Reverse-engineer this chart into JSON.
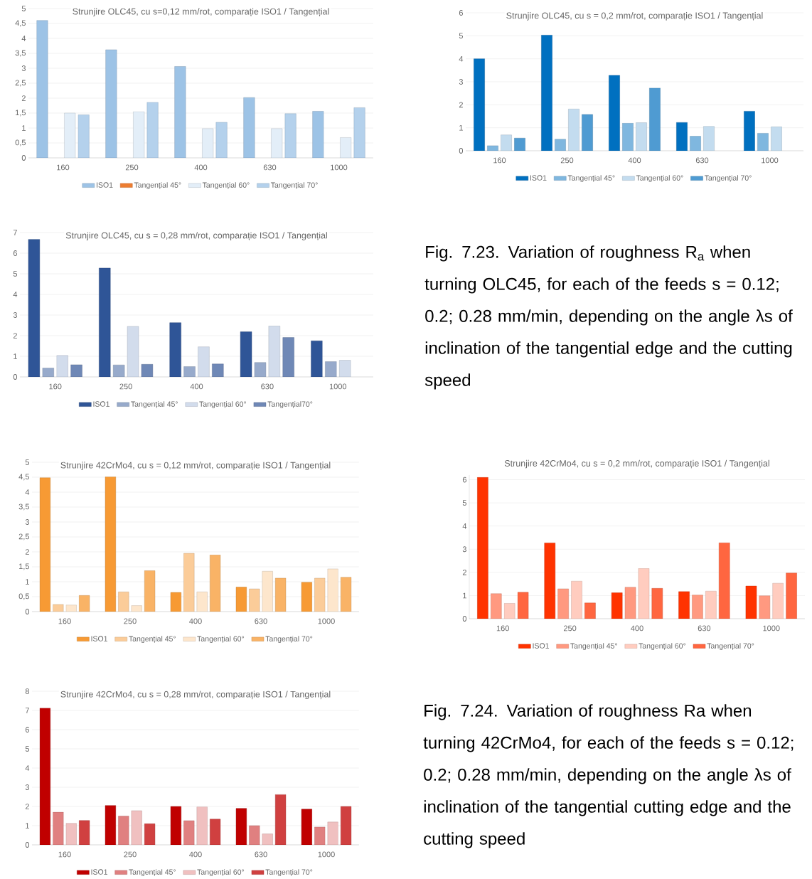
{
  "chart_data": [
    {
      "type": "bar",
      "title": "Strunjire OLC45, cu s=0,12 mm/rot, comparație ISO1 / Tangențial",
      "categories": [
        "160",
        "250",
        "400",
        "630",
        "1000"
      ],
      "ylim": [
        0,
        5
      ],
      "yticks": [
        0,
        {
          "value": 0.5,
          "label": "0,5"
        },
        1,
        {
          "value": 1.5,
          "label": "1,5"
        },
        2,
        {
          "value": 2.5,
          "label": "2,5"
        },
        3,
        {
          "value": 3.5,
          "label": "3,5"
        },
        4,
        {
          "value": 4.5,
          "label": "4,5"
        },
        5
      ],
      "grid": "y",
      "legend": "bottom",
      "series": [
        {
          "name": "ISO1",
          "color": "#9dc3e6",
          "values": [
            4.6,
            3.62,
            3.06,
            2.02,
            1.56
          ]
        },
        {
          "name": "Tangențial 45°",
          "color": "#ed7d31",
          "values": [
            null,
            null,
            null,
            null,
            null
          ]
        },
        {
          "name": "Tangențial 60°",
          "color": "#e3eef8",
          "values": [
            1.5,
            1.55,
            0.98,
            0.98,
            0.68
          ]
        },
        {
          "name": "Tangențial 70°",
          "color": "#b4d1ec",
          "values": [
            1.44,
            1.86,
            1.19,
            1.48,
            1.68
          ]
        }
      ]
    },
    {
      "type": "bar",
      "title": "Strunjire OLC45, cu s = 0,2 mm/rot, comparație ISO1 / Tangențial",
      "categories": [
        "160",
        "250",
        "400",
        "630",
        "1000"
      ],
      "ylim": [
        0,
        6
      ],
      "yticks": [
        0,
        1,
        2,
        3,
        4,
        5,
        6
      ],
      "grid": "y",
      "legend": "bottom",
      "series": [
        {
          "name": "ISO1",
          "color": "#0070c0",
          "values": [
            4.0,
            5.03,
            3.28,
            1.23,
            1.72
          ]
        },
        {
          "name": "Tangențial 45°",
          "color": "#7fb7df",
          "values": [
            0.22,
            0.5,
            1.2,
            0.63,
            0.76
          ]
        },
        {
          "name": "Tangențial 60°",
          "color": "#c3dcef",
          "values": [
            0.69,
            1.82,
            1.22,
            1.06,
            1.04
          ]
        },
        {
          "name": "Tangențial 70°",
          "color": "#4f9bd2",
          "values": [
            0.55,
            1.58,
            2.73,
            null,
            null
          ]
        }
      ]
    },
    {
      "type": "bar",
      "title": "Strunjire OLC45, cu s = 0,28 mm/rot, comparație ISO1 / Tangențial",
      "categories": [
        "160",
        "250",
        "400",
        "630",
        "1000"
      ],
      "ylim": [
        0,
        7
      ],
      "yticks": [
        0,
        1,
        2,
        3,
        4,
        5,
        6,
        7
      ],
      "grid": "y",
      "legend": "bottom",
      "series": [
        {
          "name": "ISO1",
          "color": "#2f5597",
          "values": [
            6.67,
            5.28,
            2.63,
            2.19,
            1.75
          ]
        },
        {
          "name": "Tangențial 45°",
          "color": "#97aacb",
          "values": [
            0.43,
            0.58,
            0.5,
            0.7,
            0.74
          ]
        },
        {
          "name": "Tangențial 60°",
          "color": "#d2dcec",
          "values": [
            1.04,
            2.45,
            1.46,
            2.47,
            0.81
          ]
        },
        {
          "name": "Tangențial70°",
          "color": "#6f88b6",
          "values": [
            0.59,
            0.61,
            0.63,
            1.91,
            null
          ]
        }
      ]
    },
    {
      "type": "other",
      "annotations": [
        "Fig. 7.23. Variation of roughness R$_{a}$ when turning OLC45, for each of the feeds s = 0.12; 0.2; 0.28 mm/min, depending on the angle λs of inclination of the tangential edge and the cutting speed"
      ]
    },
    {
      "type": "bar",
      "title": "Strunjire 42CrMo4, cu s = 0,12 mm/rot, comparație ISO1 / Tangențial",
      "categories": [
        "160",
        "250",
        "400",
        "630",
        "1000"
      ],
      "ylim": [
        0,
        5
      ],
      "yticks": [
        0,
        {
          "value": 0.5,
          "label": "0,5"
        },
        1,
        {
          "value": 1.5,
          "label": "1,5"
        },
        2,
        {
          "value": 2.5,
          "label": "2,5"
        },
        3,
        {
          "value": 3.5,
          "label": "3,5"
        },
        4,
        {
          "value": 4.5,
          "label": "4,5"
        },
        5
      ],
      "grid": "y",
      "legend": "bottom",
      "series": [
        {
          "name": "ISO1",
          "color": "#f79a34",
          "values": [
            4.48,
            4.51,
            0.64,
            0.82,
            0.98
          ]
        },
        {
          "name": "Tangențial 45°",
          "color": "#fbcc99",
          "values": [
            0.24,
            0.66,
            1.95,
            0.76,
            1.12
          ]
        },
        {
          "name": "Tangențial 60°",
          "color": "#fde6cc",
          "values": [
            0.22,
            0.2,
            0.66,
            1.35,
            1.43
          ]
        },
        {
          "name": "Tangențial 70°",
          "color": "#f9b366",
          "values": [
            0.54,
            1.37,
            1.9,
            1.12,
            1.15
          ]
        }
      ]
    },
    {
      "type": "bar",
      "title": "Strunjire 42CrMo4, cu s = 0,2 mm/rot, comparație ISO1 / Tangențial",
      "categories": [
        "160",
        "250",
        "400",
        "630",
        "1000"
      ],
      "ylim": [
        0,
        6.2
      ],
      "yticks": [
        0,
        1,
        2,
        3,
        4,
        5,
        6
      ],
      "grid": "y",
      "legend": "bottom",
      "series": [
        {
          "name": "ISO1",
          "color": "#ff3300",
          "values": [
            6.1,
            3.27,
            1.12,
            1.17,
            1.41
          ]
        },
        {
          "name": "Tangențial 45°",
          "color": "#ff9980",
          "values": [
            1.08,
            1.29,
            1.36,
            1.02,
            0.99
          ]
        },
        {
          "name": "Tangențial 60°",
          "color": "#ffccbf",
          "values": [
            0.66,
            1.62,
            2.17,
            1.19,
            1.53
          ]
        },
        {
          "name": "Tangențial 70°",
          "color": "#ff6640",
          "values": [
            1.14,
            0.68,
            1.31,
            3.28,
            1.97
          ]
        }
      ]
    },
    {
      "type": "bar",
      "title": "Strunjire 42CrMo4, cu s = 0,28 mm/rot, comparație ISO1 / Tangențial",
      "categories": [
        "160",
        "250",
        "400",
        "630",
        "1000"
      ],
      "ylim": [
        0,
        8
      ],
      "yticks": [
        0,
        1,
        2,
        3,
        4,
        5,
        6,
        7,
        8
      ],
      "grid": "y",
      "legend": "bottom",
      "series": [
        {
          "name": "ISO1",
          "color": "#c00000",
          "values": [
            7.12,
            2.05,
            2.0,
            1.9,
            1.86
          ]
        },
        {
          "name": "Tangențial 45°",
          "color": "#e08080",
          "values": [
            1.7,
            1.5,
            1.26,
            1.0,
            0.93
          ]
        },
        {
          "name": "Tangențial 60°",
          "color": "#f0c0c0",
          "values": [
            1.12,
            1.78,
            1.98,
            0.57,
            1.19
          ]
        },
        {
          "name": "Tangențial 70°",
          "color": "#d04040",
          "values": [
            1.27,
            1.1,
            1.34,
            2.62,
            2.0
          ]
        }
      ]
    },
    {
      "type": "other",
      "annotations": [
        "Fig. 7.24. Variation of roughness Ra when turning 42CrMo4, for each of the feeds s = 0.12; 0.2; 0.28 mm/min, depending on the angle λs of inclination of the tangential cutting edge and the cutting speed"
      ]
    }
  ]
}
